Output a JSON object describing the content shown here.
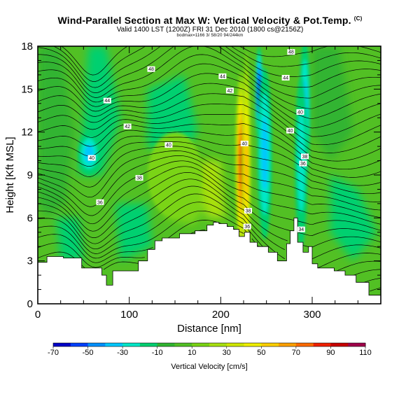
{
  "header": {
    "title": "Wind-Parallel Section at Max W: Vertical Velocity & Pot.Temp.",
    "title_mark": "(C)",
    "subtitle": "Valid 1400 LST (1200Z) FRI 31 Dec 2010 (1800 cs@2156Z)",
    "small_line": "bodmax=1166 3/ 58/20 94/244km"
  },
  "chart_data": {
    "type": "heatmap",
    "title": "Wind-Parallel Section at Max W: Vertical Velocity & Pot.Temp.",
    "xlabel": "Distance [nm]",
    "ylabel": "Height [Kft MSL]",
    "xlim": [
      0,
      375
    ],
    "ylim": [
      0,
      18
    ],
    "x_ticks": [
      0,
      100,
      200,
      300
    ],
    "y_ticks": [
      0,
      3,
      6,
      9,
      12,
      15,
      18
    ],
    "colorbar": {
      "label": "Vertical Velocity [cm/s]",
      "tick_labels": [
        "-70",
        "-50",
        "-30",
        "-10",
        "10",
        "30",
        "50",
        "70",
        "90",
        "110"
      ],
      "boundaries": [
        -70,
        -60,
        -50,
        -40,
        -30,
        -20,
        -10,
        0,
        10,
        20,
        30,
        40,
        50,
        60,
        70,
        80,
        90,
        100,
        110
      ],
      "colors": [
        "#0000c8",
        "#0040ff",
        "#0090ff",
        "#00c8ff",
        "#00e8c8",
        "#00d070",
        "#30b430",
        "#52c024",
        "#7ad414",
        "#a8e010",
        "#d0e800",
        "#f0f000",
        "#ffd000",
        "#ffa000",
        "#ff6a00",
        "#f02000",
        "#c80000",
        "#a0004a"
      ]
    },
    "isentrope_labels": [
      {
        "text": "48",
        "x": 124,
        "y": 16.4
      },
      {
        "text": "44",
        "x": 76,
        "y": 14.2
      },
      {
        "text": "42",
        "x": 98,
        "y": 12.4
      },
      {
        "text": "40",
        "x": 143,
        "y": 11.1
      },
      {
        "text": "40",
        "x": 59,
        "y": 10.2
      },
      {
        "text": "38",
        "x": 111,
        "y": 8.8
      },
      {
        "text": "36",
        "x": 68,
        "y": 7.1
      },
      {
        "text": "44",
        "x": 202,
        "y": 15.9
      },
      {
        "text": "42",
        "x": 210,
        "y": 14.9
      },
      {
        "text": "40",
        "x": 226,
        "y": 11.2
      },
      {
        "text": "38",
        "x": 230,
        "y": 6.5
      },
      {
        "text": "36",
        "x": 229,
        "y": 5.4
      },
      {
        "text": "48",
        "x": 277,
        "y": 17.6
      },
      {
        "text": "44",
        "x": 271,
        "y": 15.8
      },
      {
        "text": "40",
        "x": 287,
        "y": 13.4
      },
      {
        "text": "40",
        "x": 276,
        "y": 12.1
      },
      {
        "text": "38",
        "x": 292,
        "y": 10.3
      },
      {
        "text": "36",
        "x": 290,
        "y": 9.8
      },
      {
        "text": "34",
        "x": 288,
        "y": 5.2
      }
    ],
    "terrain_profile": [
      [
        0,
        2.9
      ],
      [
        10,
        2.9
      ],
      [
        10,
        3.3
      ],
      [
        28,
        3.3
      ],
      [
        28,
        3.2
      ],
      [
        48,
        3.2
      ],
      [
        48,
        2.5
      ],
      [
        70,
        2.5
      ],
      [
        70,
        2.0
      ],
      [
        75,
        2.0
      ],
      [
        75,
        1.3
      ],
      [
        82,
        1.3
      ],
      [
        82,
        2.3
      ],
      [
        110,
        2.3
      ],
      [
        110,
        3.0
      ],
      [
        120,
        3.0
      ],
      [
        120,
        3.8
      ],
      [
        128,
        3.8
      ],
      [
        128,
        4.4
      ],
      [
        136,
        4.4
      ],
      [
        136,
        4.6
      ],
      [
        155,
        4.6
      ],
      [
        155,
        4.9
      ],
      [
        172,
        4.9
      ],
      [
        172,
        5.1
      ],
      [
        185,
        5.1
      ],
      [
        185,
        5.5
      ],
      [
        192,
        5.5
      ],
      [
        192,
        5.7
      ],
      [
        198,
        5.7
      ],
      [
        198,
        5.6
      ],
      [
        207,
        5.6
      ],
      [
        207,
        5.4
      ],
      [
        214,
        5.4
      ],
      [
        214,
        5.2
      ],
      [
        220,
        5.2
      ],
      [
        220,
        4.7
      ],
      [
        226,
        4.7
      ],
      [
        226,
        5.0
      ],
      [
        232,
        5.0
      ],
      [
        232,
        4.3
      ],
      [
        240,
        4.3
      ],
      [
        240,
        4.0
      ],
      [
        252,
        4.0
      ],
      [
        252,
        3.6
      ],
      [
        262,
        3.6
      ],
      [
        262,
        3.0
      ],
      [
        272,
        3.0
      ],
      [
        272,
        4.2
      ],
      [
        276,
        4.2
      ],
      [
        276,
        5.1
      ],
      [
        280,
        5.1
      ],
      [
        280,
        6.0
      ],
      [
        284,
        6.0
      ],
      [
        284,
        4.3
      ],
      [
        290,
        4.3
      ],
      [
        290,
        3.6
      ],
      [
        296,
        3.6
      ],
      [
        296,
        4.0
      ],
      [
        300,
        4.0
      ],
      [
        300,
        2.8
      ],
      [
        306,
        2.8
      ],
      [
        306,
        2.5
      ],
      [
        324,
        2.5
      ],
      [
        324,
        2.3
      ],
      [
        336,
        2.3
      ],
      [
        336,
        2.0
      ],
      [
        348,
        2.0
      ],
      [
        348,
        1.5
      ],
      [
        362,
        1.5
      ],
      [
        362,
        0.6
      ],
      [
        375,
        0.6
      ]
    ],
    "w_features": [
      {
        "x": 222,
        "y": 9.8,
        "rx": 6,
        "ry": 6.5,
        "w": 90
      },
      {
        "x": 228,
        "y": 9.6,
        "rx": 5,
        "ry": 8,
        "w": 60
      },
      {
        "x": 242,
        "y": 14.5,
        "rx": 4,
        "ry": 3.5,
        "w": -70
      },
      {
        "x": 248,
        "y": 10.5,
        "rx": 8,
        "ry": 6,
        "w": -30
      },
      {
        "x": 292,
        "y": 13.5,
        "rx": 6,
        "ry": 5,
        "w": -30
      },
      {
        "x": 288,
        "y": 10,
        "rx": 7,
        "ry": 6,
        "w": -20
      },
      {
        "x": 150,
        "y": 9,
        "rx": 30,
        "ry": 3,
        "w": 10
      },
      {
        "x": 56,
        "y": 10.5,
        "rx": 12,
        "ry": 1.5,
        "w": -30
      }
    ]
  },
  "axes": {
    "x_tick_labels": [
      "0",
      "100",
      "200",
      "300"
    ],
    "y_tick_labels": [
      "0",
      "3",
      "6",
      "9",
      "12",
      "15",
      "18"
    ]
  }
}
